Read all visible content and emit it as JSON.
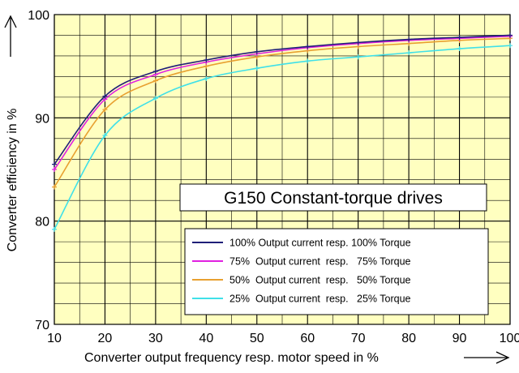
{
  "chart_data": {
    "type": "line",
    "title": "G150 Constant-torque drives",
    "xlabel": "Converter output frequency resp. motor speed in %",
    "ylabel": "Converter efficiency in  %",
    "xlim": [
      10,
      100
    ],
    "ylim": [
      70,
      100
    ],
    "x_ticks": [
      10,
      20,
      30,
      40,
      50,
      60,
      70,
      80,
      90,
      100
    ],
    "y_ticks": [
      70,
      80,
      90,
      100
    ],
    "grid": true,
    "background_color": "#ffffc0",
    "legend_position": "bottom-right",
    "x": [
      10,
      20,
      30,
      40,
      50,
      60,
      70,
      80,
      90,
      100
    ],
    "series": [
      {
        "name": "100% Output current resp. 100% Torque",
        "color": "#1f1f78",
        "values": [
          85.5,
          92.1,
          94.5,
          95.6,
          96.4,
          96.9,
          97.3,
          97.6,
          97.8,
          98.0
        ]
      },
      {
        "name": "75%  Output current  resp.   75% Torque",
        "color": "#e020e0",
        "values": [
          85.0,
          91.8,
          94.2,
          95.4,
          96.2,
          96.8,
          97.2,
          97.5,
          97.7,
          97.9
        ]
      },
      {
        "name": "50%  Output current  resp.   50% Torque",
        "color": "#e8a030",
        "values": [
          83.3,
          90.8,
          93.6,
          95.0,
          95.9,
          96.5,
          96.9,
          97.2,
          97.5,
          97.7
        ]
      },
      {
        "name": "25%  Output current  resp.   25% Torque",
        "color": "#40e0e8",
        "values": [
          79.2,
          88.3,
          91.9,
          93.8,
          94.8,
          95.5,
          95.9,
          96.3,
          96.7,
          97.0
        ]
      }
    ]
  }
}
